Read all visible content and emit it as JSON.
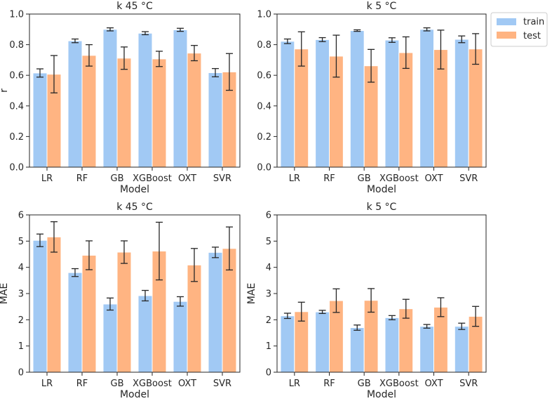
{
  "colors": {
    "train": "#a1c9f4",
    "test": "#ffb482",
    "axis": "#262626",
    "error": "#262626"
  },
  "legend": {
    "items": [
      "train",
      "test"
    ],
    "placement": "upper-right outside"
  },
  "chart_data": [
    {
      "type": "bar",
      "title": "k 45 °C",
      "xlabel": "Model",
      "ylabel": "r",
      "ylim": [
        0,
        1.0
      ],
      "yticks": [
        "0.0",
        "0.2",
        "0.4",
        "0.6",
        "0.8",
        "1.0"
      ],
      "ytick_values": [
        0,
        0.2,
        0.4,
        0.6,
        0.8,
        1.0
      ],
      "categories": [
        "LR",
        "RF",
        "GB",
        "XGBoost",
        "OXT",
        "SVR"
      ],
      "series": [
        {
          "name": "train",
          "values": [
            0.615,
            0.825,
            0.9,
            0.875,
            0.897,
            0.617
          ],
          "errors": [
            0.027,
            0.012,
            0.01,
            0.01,
            0.01,
            0.027
          ]
        },
        {
          "name": "test",
          "values": [
            0.607,
            0.73,
            0.712,
            0.707,
            0.745,
            0.622
          ],
          "errors": [
            0.122,
            0.07,
            0.073,
            0.05,
            0.05,
            0.12
          ]
        }
      ]
    },
    {
      "type": "bar",
      "title": "k 5 °C",
      "xlabel": "Model",
      "ylabel": "",
      "ylim": [
        0,
        1.0
      ],
      "yticks": [
        "0.0",
        "0.2",
        "0.4",
        "0.6",
        "0.8",
        "1.0"
      ],
      "ytick_values": [
        0,
        0.2,
        0.4,
        0.6,
        0.8,
        1.0
      ],
      "categories": [
        "LR",
        "RF",
        "GB",
        "XGBoost",
        "OXT",
        "SVR"
      ],
      "series": [
        {
          "name": "train",
          "values": [
            0.822,
            0.833,
            0.892,
            0.83,
            0.9,
            0.835
          ],
          "errors": [
            0.015,
            0.013,
            0.005,
            0.015,
            0.01,
            0.022
          ]
        },
        {
          "name": "test",
          "values": [
            0.772,
            0.725,
            0.662,
            0.748,
            0.768,
            0.772
          ],
          "errors": [
            0.112,
            0.137,
            0.107,
            0.103,
            0.127,
            0.1
          ]
        }
      ]
    },
    {
      "type": "bar",
      "title": "k 45 °C",
      "xlabel": "Model",
      "ylabel": "MAE",
      "ylim": [
        0,
        6
      ],
      "yticks": [
        "0",
        "1",
        "2",
        "3",
        "4",
        "5",
        "6"
      ],
      "ytick_values": [
        0,
        1,
        2,
        3,
        4,
        5,
        6
      ],
      "categories": [
        "LR",
        "RF",
        "GB",
        "XGBoost",
        "OXT",
        "SVR"
      ],
      "series": [
        {
          "name": "train",
          "values": [
            5.03,
            3.8,
            2.6,
            2.92,
            2.7,
            4.57
          ],
          "errors": [
            0.24,
            0.15,
            0.23,
            0.2,
            0.18,
            0.2
          ]
        },
        {
          "name": "test",
          "values": [
            5.16,
            4.46,
            4.58,
            4.62,
            4.09,
            4.72
          ],
          "errors": [
            0.58,
            0.55,
            0.43,
            1.1,
            0.63,
            0.82
          ]
        }
      ]
    },
    {
      "type": "bar",
      "title": "k 5 °C",
      "xlabel": "Model",
      "ylabel": "MAE",
      "ylim": [
        0,
        6
      ],
      "yticks": [
        "0",
        "1",
        "2",
        "3",
        "4",
        "5",
        "6"
      ],
      "ytick_values": [
        0,
        1,
        2,
        3,
        4,
        5,
        6
      ],
      "categories": [
        "LR",
        "RF",
        "GB",
        "XGBoost",
        "OXT",
        "SVR"
      ],
      "series": [
        {
          "name": "train",
          "values": [
            2.15,
            2.3,
            1.7,
            2.08,
            1.75,
            1.75
          ],
          "errors": [
            0.1,
            0.06,
            0.1,
            0.08,
            0.07,
            0.12
          ]
        },
        {
          "name": "test",
          "values": [
            2.31,
            2.73,
            2.74,
            2.42,
            2.48,
            2.13
          ],
          "errors": [
            0.36,
            0.45,
            0.45,
            0.36,
            0.36,
            0.38
          ]
        }
      ]
    }
  ]
}
